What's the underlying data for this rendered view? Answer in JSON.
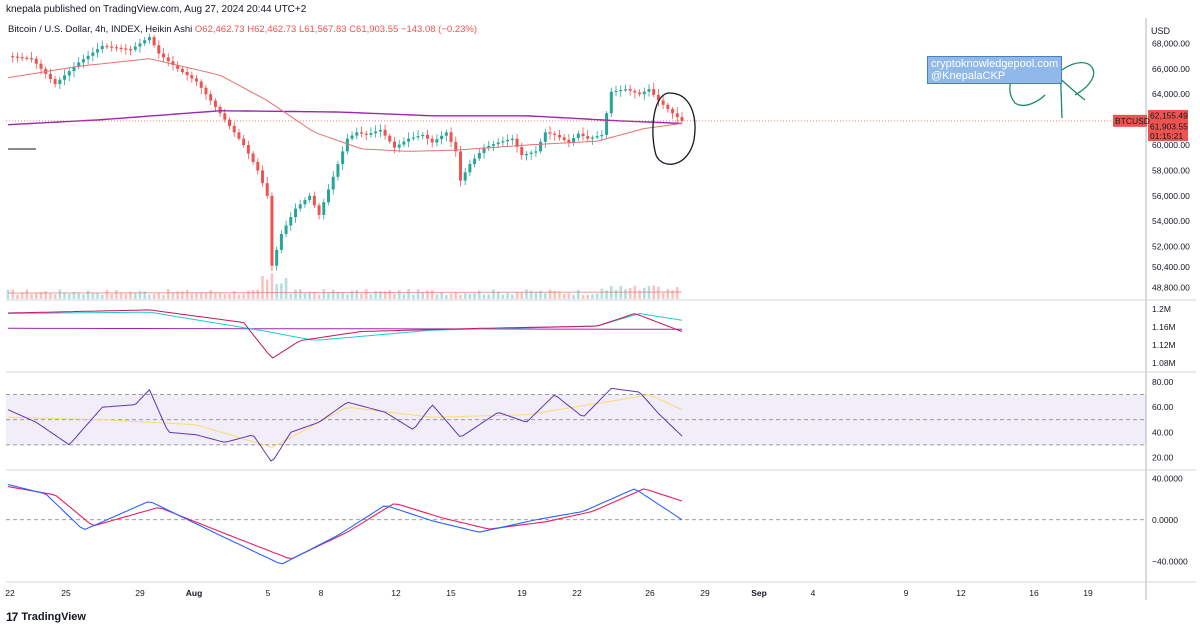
{
  "header": {
    "published": "knepala published on TradingView.com, Aug 27, 2024 20:44 UTC+2"
  },
  "legend": {
    "symbol": "Bitcoin / U.S. Dollar, 4h, INDEX, Heikin Ashi",
    "open": "O62,462.73",
    "high": "H62,462.73",
    "low": "L61,567.83",
    "close": "C61,903.55",
    "change": "−143.08 (−0.23%)"
  },
  "currency": "USD",
  "watermark": {
    "line1": "cryptoknowledgepool.com",
    "line2": "@KnepalaCKP"
  },
  "price_tags": {
    "symbol": "BTCUSD",
    "upper": "62,155.49",
    "last": "61,903.55",
    "countdown": "01:15:21"
  },
  "footer": {
    "brand": "TradingView",
    "logo": "17"
  },
  "colors": {
    "up": "#26a69a",
    "down": "#ef5350",
    "ma_long": "#9c27b0",
    "ma_short": "#e57373",
    "rsi": "#5e35b1",
    "rsi_ma": "#f9d976",
    "macd": "#2962ff",
    "signal": "#e91e63",
    "obv_fast": "#26c6da",
    "obv_line": "#c2185b"
  },
  "chart_data": [
    {
      "type": "candlestick",
      "title": "Bitcoin / U.S. Dollar, 4h, INDEX, Heikin Ashi",
      "y_ticks": [
        "68,000.00",
        "66,000.00",
        "64,000.00",
        "60,000.00",
        "58,000.00",
        "56,000.00",
        "54,000.00",
        "52,000.00",
        "50,400.00",
        "48,800.00"
      ],
      "ylim": [
        47800,
        70000
      ],
      "x_ticks": [
        "22",
        "25",
        "29",
        "Aug",
        "5",
        "8",
        "12",
        "15",
        "19",
        "22",
        "26",
        "29",
        "Sep",
        "4",
        "9",
        "12",
        "16",
        "19"
      ],
      "close_path": [
        {
          "x": 0,
          "y": 67000
        },
        {
          "x": 5,
          "y": 66800
        },
        {
          "x": 10,
          "y": 64800
        },
        {
          "x": 15,
          "y": 66500
        },
        {
          "x": 20,
          "y": 67800
        },
        {
          "x": 26,
          "y": 67500
        },
        {
          "x": 30,
          "y": 68500
        },
        {
          "x": 32,
          "y": 67200
        },
        {
          "x": 36,
          "y": 66000
        },
        {
          "x": 40,
          "y": 65000
        },
        {
          "x": 43,
          "y": 63500
        },
        {
          "x": 46,
          "y": 62000
        },
        {
          "x": 50,
          "y": 60000
        },
        {
          "x": 53,
          "y": 58000
        },
        {
          "x": 55,
          "y": 56000
        },
        {
          "x": 56,
          "y": 50500
        },
        {
          "x": 58,
          "y": 53000
        },
        {
          "x": 61,
          "y": 55000
        },
        {
          "x": 64,
          "y": 56000
        },
        {
          "x": 66,
          "y": 54500
        },
        {
          "x": 68,
          "y": 56500
        },
        {
          "x": 70,
          "y": 58500
        },
        {
          "x": 72,
          "y": 60500
        },
        {
          "x": 74,
          "y": 61000
        },
        {
          "x": 76,
          "y": 60800
        },
        {
          "x": 79,
          "y": 61200
        },
        {
          "x": 82,
          "y": 59800
        },
        {
          "x": 85,
          "y": 60500
        },
        {
          "x": 88,
          "y": 60800
        },
        {
          "x": 90,
          "y": 60200
        },
        {
          "x": 93,
          "y": 61000
        },
        {
          "x": 95,
          "y": 59500
        },
        {
          "x": 96,
          "y": 57200
        },
        {
          "x": 98,
          "y": 58500
        },
        {
          "x": 101,
          "y": 59800
        },
        {
          "x": 104,
          "y": 60200
        },
        {
          "x": 107,
          "y": 60500
        },
        {
          "x": 109,
          "y": 59200
        },
        {
          "x": 112,
          "y": 59500
        },
        {
          "x": 114,
          "y": 61000
        },
        {
          "x": 116,
          "y": 60800
        },
        {
          "x": 119,
          "y": 60200
        },
        {
          "x": 121,
          "y": 60900
        },
        {
          "x": 123,
          "y": 60500
        },
        {
          "x": 126,
          "y": 60800
        },
        {
          "x": 128,
          "y": 64200
        },
        {
          "x": 131,
          "y": 64400
        },
        {
          "x": 134,
          "y": 64000
        },
        {
          "x": 136,
          "y": 64400
        },
        {
          "x": 138,
          "y": 63500
        },
        {
          "x": 141,
          "y": 62500
        },
        {
          "x": 143,
          "y": 61900
        }
      ],
      "ma_long": [
        {
          "x": 0,
          "y": 61600
        },
        {
          "x": 20,
          "y": 62000
        },
        {
          "x": 45,
          "y": 62700
        },
        {
          "x": 70,
          "y": 62600
        },
        {
          "x": 90,
          "y": 62300
        },
        {
          "x": 110,
          "y": 62300
        },
        {
          "x": 130,
          "y": 61900
        },
        {
          "x": 143,
          "y": 61700
        }
      ],
      "ma_short": [
        {
          "x": 0,
          "y": 65300
        },
        {
          "x": 15,
          "y": 66200
        },
        {
          "x": 30,
          "y": 66800
        },
        {
          "x": 45,
          "y": 65500
        },
        {
          "x": 55,
          "y": 63500
        },
        {
          "x": 65,
          "y": 61000
        },
        {
          "x": 75,
          "y": 59700
        },
        {
          "x": 85,
          "y": 59500
        },
        {
          "x": 95,
          "y": 59600
        },
        {
          "x": 110,
          "y": 60000
        },
        {
          "x": 125,
          "y": 60300
        },
        {
          "x": 135,
          "y": 61300
        },
        {
          "x": 143,
          "y": 61700
        }
      ]
    },
    {
      "type": "line",
      "title": "",
      "y_ticks": [
        "1.2M",
        "1.16M",
        "1.12M",
        "1.08M"
      ],
      "ylim": [
        1.06,
        1.22
      ],
      "series": [
        {
          "values_path": [
            {
              "x": 0,
              "y": 1.191
            },
            {
              "x": 30,
              "y": 1.198
            },
            {
              "x": 50,
              "y": 1.17
            },
            {
              "x": 56,
              "y": 1.09
            },
            {
              "x": 62,
              "y": 1.13
            },
            {
              "x": 75,
              "y": 1.15
            },
            {
              "x": 100,
              "y": 1.157
            },
            {
              "x": 125,
              "y": 1.162
            },
            {
              "x": 133,
              "y": 1.19
            },
            {
              "x": 143,
              "y": 1.15
            }
          ]
        },
        {
          "values_path": [
            {
              "x": 0,
              "y": 1.19
            },
            {
              "x": 30,
              "y": 1.193
            },
            {
              "x": 55,
              "y": 1.15
            },
            {
              "x": 65,
              "y": 1.13
            },
            {
              "x": 90,
              "y": 1.153
            },
            {
              "x": 125,
              "y": 1.162
            },
            {
              "x": 134,
              "y": 1.19
            },
            {
              "x": 143,
              "y": 1.175
            }
          ]
        },
        {
          "values_path": [
            {
              "x": 0,
              "y": 1.157
            },
            {
              "x": 143,
              "y": 1.155
            }
          ]
        }
      ]
    },
    {
      "type": "line",
      "title": "",
      "y_ticks": [
        "80.00",
        "60.00",
        "40.00",
        "20.00"
      ],
      "ylim": [
        10,
        88
      ],
      "bands": [
        70,
        50,
        30
      ],
      "series": [
        {
          "values_path": [
            {
              "x": 0,
              "y": 58
            },
            {
              "x": 6,
              "y": 48
            },
            {
              "x": 13,
              "y": 30
            },
            {
              "x": 20,
              "y": 60
            },
            {
              "x": 27,
              "y": 62
            },
            {
              "x": 30,
              "y": 74
            },
            {
              "x": 34,
              "y": 40
            },
            {
              "x": 40,
              "y": 38
            },
            {
              "x": 46,
              "y": 32
            },
            {
              "x": 52,
              "y": 38
            },
            {
              "x": 56,
              "y": 16
            },
            {
              "x": 60,
              "y": 40
            },
            {
              "x": 66,
              "y": 48
            },
            {
              "x": 72,
              "y": 64
            },
            {
              "x": 80,
              "y": 56
            },
            {
              "x": 86,
              "y": 42
            },
            {
              "x": 90,
              "y": 62
            },
            {
              "x": 96,
              "y": 36
            },
            {
              "x": 104,
              "y": 56
            },
            {
              "x": 110,
              "y": 48
            },
            {
              "x": 116,
              "y": 70
            },
            {
              "x": 122,
              "y": 52
            },
            {
              "x": 128,
              "y": 75
            },
            {
              "x": 134,
              "y": 72
            },
            {
              "x": 138,
              "y": 55
            },
            {
              "x": 143,
              "y": 37
            }
          ]
        },
        {
          "values_path": [
            {
              "x": 0,
              "y": 52
            },
            {
              "x": 20,
              "y": 50
            },
            {
              "x": 40,
              "y": 46
            },
            {
              "x": 56,
              "y": 28
            },
            {
              "x": 72,
              "y": 60
            },
            {
              "x": 90,
              "y": 52
            },
            {
              "x": 110,
              "y": 54
            },
            {
              "x": 130,
              "y": 66
            },
            {
              "x": 136,
              "y": 70
            },
            {
              "x": 143,
              "y": 58
            }
          ]
        }
      ]
    },
    {
      "type": "line",
      "title": "",
      "y_ticks": [
        "40.0000",
        "0.0000",
        "−40.0000"
      ],
      "ylim": [
        -60,
        48
      ],
      "series": [
        {
          "values_path": [
            {
              "x": 0,
              "y": 34
            },
            {
              "x": 8,
              "y": 25
            },
            {
              "x": 16,
              "y": -10
            },
            {
              "x": 30,
              "y": 18
            },
            {
              "x": 45,
              "y": -15
            },
            {
              "x": 58,
              "y": -43
            },
            {
              "x": 70,
              "y": -15
            },
            {
              "x": 80,
              "y": 14
            },
            {
              "x": 90,
              "y": -1
            },
            {
              "x": 100,
              "y": -12
            },
            {
              "x": 112,
              "y": 0
            },
            {
              "x": 122,
              "y": 8
            },
            {
              "x": 133,
              "y": 30
            },
            {
              "x": 143,
              "y": 0
            }
          ]
        },
        {
          "values_path": [
            {
              "x": 0,
              "y": 32
            },
            {
              "x": 10,
              "y": 24
            },
            {
              "x": 18,
              "y": -6
            },
            {
              "x": 32,
              "y": 12
            },
            {
              "x": 47,
              "y": -15
            },
            {
              "x": 60,
              "y": -38
            },
            {
              "x": 72,
              "y": -12
            },
            {
              "x": 82,
              "y": 16
            },
            {
              "x": 92,
              "y": 2
            },
            {
              "x": 102,
              "y": -9
            },
            {
              "x": 114,
              "y": -2
            },
            {
              "x": 124,
              "y": 8
            },
            {
              "x": 135,
              "y": 30
            },
            {
              "x": 143,
              "y": 18
            }
          ]
        }
      ]
    }
  ]
}
